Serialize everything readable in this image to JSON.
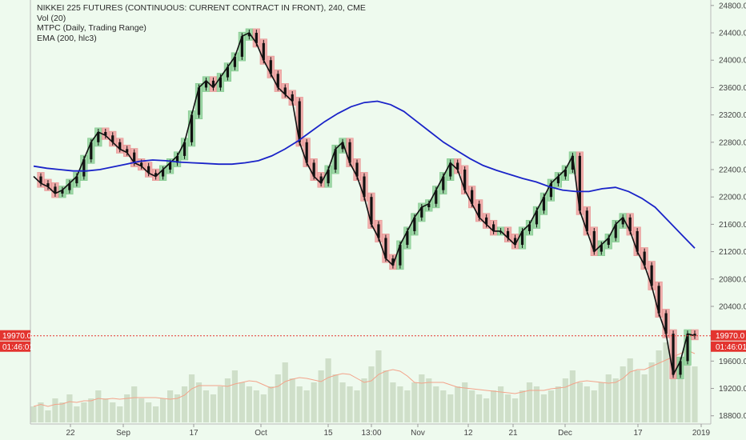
{
  "legend": {
    "symbol": "NIKKEI 225 FUTURES (CONTINUOUS: CURRENT CONTRACT IN FRONT), 240, CME",
    "vol": "Vol (20)",
    "mtpc": "MTPC (Daily, Trading Range)",
    "ema": "EMA (200, hlc3)"
  },
  "price_tag": {
    "price": "19970.0",
    "countdown": "01:46:01",
    "value": 19970
  },
  "colors": {
    "background": "#eefaee",
    "up_box": "#8fd19a",
    "down_box": "#f2a0a0",
    "candle": "#111111",
    "ema": "#1a23c8",
    "price_line": "#e3342f",
    "volume": "#c9d9c2",
    "volume_ma": "#f3a38a"
  },
  "chart_data": {
    "type": "line",
    "title": "NIKKEI 225 FUTURES (CONTINUOUS: CURRENT CONTRACT IN FRONT), 240, CME",
    "ylim": [
      18680,
      24880
    ],
    "y_ticks": [
      "24800.0",
      "24400.0",
      "24000.0",
      "23600.0",
      "23200.0",
      "22800.0",
      "22400.0",
      "22000.0",
      "21600.0",
      "21200.0",
      "20800.0",
      "20400.0",
      "19600.0",
      "19200.0",
      "18800.0"
    ],
    "x_ticks": [
      "22",
      "Sep",
      "17",
      "Oct",
      "15",
      "13:00",
      "Nov",
      "12",
      "21",
      "Dec",
      "17",
      "2019"
    ],
    "grid": false,
    "series": [
      {
        "name": "Close",
        "type": "line",
        "values": [
          22300,
          22200,
          22150,
          22050,
          22100,
          22200,
          22300,
          22550,
          22800,
          22950,
          22900,
          22800,
          22700,
          22650,
          22500,
          22450,
          22350,
          22300,
          22400,
          22500,
          22600,
          22800,
          23200,
          23600,
          23700,
          23600,
          23750,
          23900,
          24050,
          24350,
          24400,
          24250,
          24000,
          23800,
          23600,
          23500,
          23400,
          22800,
          22500,
          22300,
          22200,
          22400,
          22700,
          22800,
          22500,
          22300,
          22000,
          21600,
          21400,
          21100,
          21000,
          21300,
          21500,
          21700,
          21850,
          21900,
          22100,
          22300,
          22500,
          22400,
          22100,
          21900,
          21700,
          21600,
          21500,
          21500,
          21400,
          21300,
          21500,
          21600,
          21800,
          22000,
          22200,
          22300,
          22400,
          22600,
          21800,
          21500,
          21200,
          21300,
          21400,
          21600,
          21700,
          21500,
          21200,
          21000,
          20700,
          20300,
          20000,
          19400,
          19600,
          20000,
          19970
        ]
      },
      {
        "name": "EMA (200, hlc3)",
        "type": "line",
        "values": [
          22450,
          22420,
          22400,
          22380,
          22380,
          22400,
          22440,
          22480,
          22520,
          22540,
          22530,
          22510,
          22500,
          22490,
          22480,
          22480,
          22500,
          22530,
          22600,
          22700,
          22820,
          22960,
          23100,
          23220,
          23320,
          23380,
          23400,
          23350,
          23250,
          23100,
          22950,
          22800,
          22680,
          22560,
          22460,
          22390,
          22330,
          22270,
          22220,
          22150,
          22100,
          22080,
          22080,
          22120,
          22140,
          22080,
          21980,
          21850,
          21650,
          21450,
          21250
        ]
      },
      {
        "name": "Vol (20)",
        "type": "bar",
        "values": [
          4,
          5,
          3,
          6,
          5,
          7,
          4,
          5,
          6,
          8,
          6,
          5,
          4,
          7,
          9,
          6,
          5,
          4,
          6,
          8,
          7,
          9,
          12,
          10,
          8,
          7,
          9,
          11,
          13,
          10,
          9,
          8,
          7,
          9,
          12,
          15,
          11,
          9,
          8,
          10,
          13,
          16,
          12,
          10,
          9,
          8,
          11,
          14,
          18,
          13,
          10,
          9,
          8,
          10,
          12,
          11,
          9,
          8,
          7,
          9,
          10,
          8,
          7,
          6,
          8,
          9,
          7,
          6,
          8,
          10,
          9,
          7,
          8,
          9,
          11,
          13,
          10,
          9,
          8,
          10,
          12,
          11,
          14,
          16,
          13,
          12,
          15,
          18,
          20,
          17,
          16,
          19,
          14
        ]
      }
    ]
  }
}
